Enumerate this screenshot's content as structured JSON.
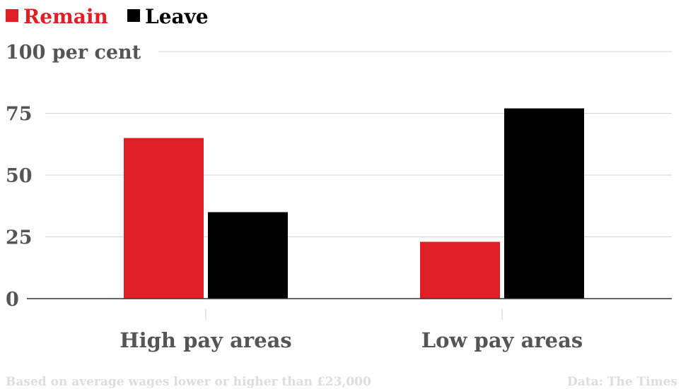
{
  "chart_data": {
    "type": "bar",
    "categories": [
      "High pay areas",
      "Low pay areas"
    ],
    "series": [
      {
        "name": "Remain",
        "values": [
          65,
          23
        ],
        "color": "#e01e26"
      },
      {
        "name": "Leave",
        "values": [
          35,
          77
        ],
        "color": "#000000"
      }
    ],
    "ylim": [
      0,
      100
    ],
    "y_ticks": [
      0,
      25,
      50,
      75
    ],
    "y_top_tick_label": "100 per cent",
    "grid": true,
    "legend_placement": "top-left"
  },
  "footer": {
    "note": "Based on average wages lower or higher than £23,000",
    "source": "Data: The Times"
  }
}
